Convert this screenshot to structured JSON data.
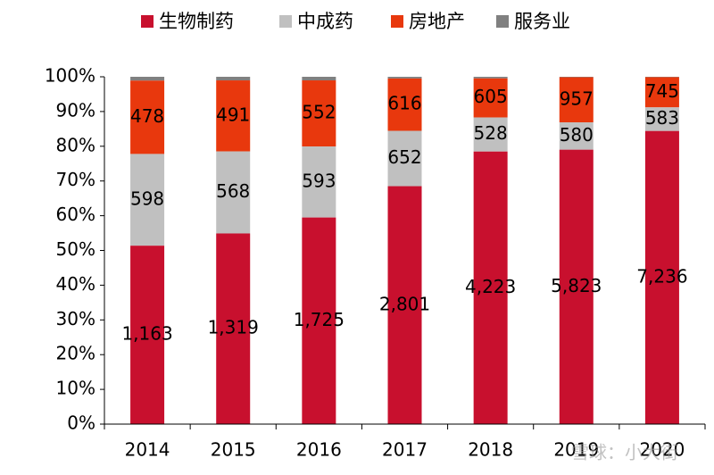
{
  "chart_data": {
    "type": "stacked_bar_100",
    "categories": [
      "2014",
      "2015",
      "2016",
      "2017",
      "2018",
      "2019",
      "2020"
    ],
    "series": [
      {
        "name": "生物制药",
        "color": "#c8102e",
        "values": [
          1163,
          1319,
          1725,
          2801,
          4223,
          5823,
          7236
        ],
        "value_labels": [
          "1,163",
          "1,319",
          "1,725",
          "2,801",
          "4,223",
          "5,823",
          "7,236"
        ]
      },
      {
        "name": "中成药",
        "color": "#c0c0c0",
        "values": [
          598,
          568,
          593,
          652,
          528,
          580,
          583
        ]
      },
      {
        "name": "房地产",
        "color": "#e8380d",
        "values": [
          478,
          491,
          552,
          616,
          605,
          957,
          745
        ]
      },
      {
        "name": "服务业",
        "color": "#808080",
        "values": [
          25,
          25,
          30,
          20,
          25,
          10,
          10
        ]
      }
    ],
    "ylim": [
      0,
      100
    ],
    "yticks": [
      {
        "value": 0,
        "label": "0%"
      },
      {
        "value": 10,
        "label": "10%"
      },
      {
        "value": 20,
        "label": "20%"
      },
      {
        "value": 30,
        "label": "30%"
      },
      {
        "value": 40,
        "label": "40%"
      },
      {
        "value": 50,
        "label": "50%"
      },
      {
        "value": 60,
        "label": "60%"
      },
      {
        "value": 70,
        "label": "70%"
      },
      {
        "value": 80,
        "label": "80%"
      },
      {
        "value": 90,
        "label": "90%"
      },
      {
        "value": 100,
        "label": "100%"
      }
    ],
    "legend": "top",
    "watermark": "雪球：小大街"
  }
}
